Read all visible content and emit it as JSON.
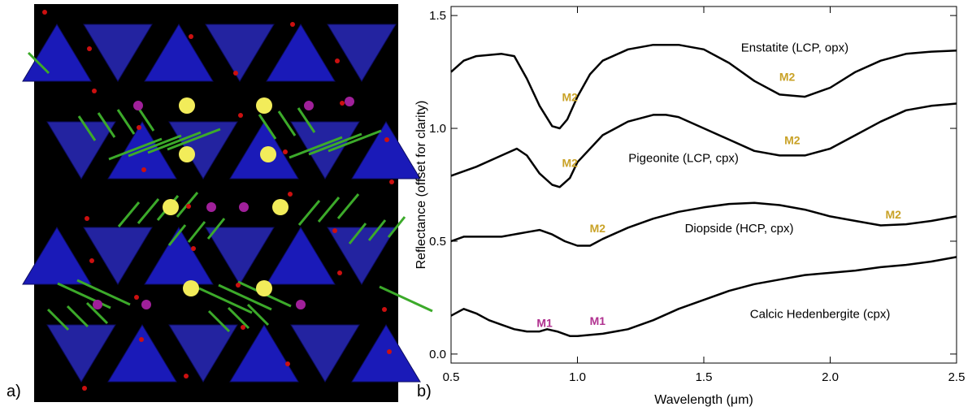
{
  "panel_labels": [
    "a)",
    "b)"
  ],
  "chart_data": {
    "type": "line",
    "xlabel": "Wavelength (μm)",
    "ylabel": "Reflectance (offset for clarity)",
    "xlim": [
      0.5,
      2.5
    ],
    "xticks": [
      0.5,
      {
        "value": 1,
        "label": "1.0"
      },
      1.5,
      {
        "value": 2,
        "label": "2.0"
      },
      2.5
    ],
    "ylim": [
      -0.04,
      1.54
    ],
    "yticks": [
      {
        "value": 0,
        "label": "0.0"
      },
      0.5,
      {
        "value": 1,
        "label": "1.0"
      },
      1.5
    ],
    "grid": false,
    "series": [
      {
        "name": "Enstatite (LCP, opx)",
        "color": "#000000",
        "x": [
          0.5,
          0.55,
          0.6,
          0.7,
          0.75,
          0.8,
          0.85,
          0.9,
          0.93,
          0.96,
          1.0,
          1.05,
          1.1,
          1.2,
          1.3,
          1.4,
          1.5,
          1.6,
          1.7,
          1.8,
          1.9,
          2.0,
          2.1,
          2.2,
          2.3,
          2.4,
          2.5
        ],
        "values": [
          1.25,
          1.3,
          1.32,
          1.33,
          1.32,
          1.22,
          1.1,
          1.01,
          1.0,
          1.04,
          1.14,
          1.24,
          1.3,
          1.35,
          1.37,
          1.37,
          1.35,
          1.29,
          1.21,
          1.15,
          1.14,
          1.18,
          1.25,
          1.3,
          1.33,
          1.34,
          1.345
        ]
      },
      {
        "name": "Pigeonite (LCP, cpx)",
        "color": "#000000",
        "x": [
          0.5,
          0.6,
          0.7,
          0.76,
          0.8,
          0.85,
          0.9,
          0.93,
          0.97,
          1.0,
          1.1,
          1.2,
          1.3,
          1.35,
          1.4,
          1.5,
          1.6,
          1.7,
          1.8,
          1.9,
          2.0,
          2.1,
          2.2,
          2.3,
          2.4,
          2.5
        ],
        "values": [
          0.79,
          0.83,
          0.88,
          0.91,
          0.88,
          0.8,
          0.75,
          0.74,
          0.78,
          0.85,
          0.97,
          1.03,
          1.06,
          1.06,
          1.05,
          1.0,
          0.95,
          0.9,
          0.88,
          0.88,
          0.91,
          0.97,
          1.03,
          1.08,
          1.1,
          1.11
        ]
      },
      {
        "name": "Diopside (HCP, cpx)",
        "color": "#000000",
        "x": [
          0.5,
          0.55,
          0.7,
          0.8,
          0.85,
          0.9,
          0.95,
          1.0,
          1.05,
          1.1,
          1.2,
          1.3,
          1.4,
          1.5,
          1.6,
          1.7,
          1.8,
          1.9,
          2.0,
          2.1,
          2.2,
          2.3,
          2.4,
          2.5
        ],
        "values": [
          0.5,
          0.52,
          0.52,
          0.54,
          0.55,
          0.53,
          0.5,
          0.48,
          0.48,
          0.51,
          0.56,
          0.6,
          0.63,
          0.65,
          0.665,
          0.67,
          0.66,
          0.64,
          0.61,
          0.59,
          0.57,
          0.575,
          0.59,
          0.61
        ]
      },
      {
        "name": "Calcic Hedenbergite  (cpx)",
        "color": "#000000",
        "x": [
          0.5,
          0.55,
          0.6,
          0.65,
          0.7,
          0.75,
          0.8,
          0.85,
          0.88,
          0.92,
          0.97,
          1.0,
          1.1,
          1.2,
          1.3,
          1.4,
          1.5,
          1.6,
          1.7,
          1.8,
          1.9,
          2.0,
          2.1,
          2.2,
          2.3,
          2.4,
          2.5
        ],
        "values": [
          0.17,
          0.2,
          0.18,
          0.15,
          0.13,
          0.11,
          0.1,
          0.1,
          0.11,
          0.1,
          0.08,
          0.08,
          0.09,
          0.11,
          0.15,
          0.2,
          0.24,
          0.28,
          0.31,
          0.33,
          0.35,
          0.36,
          0.37,
          0.385,
          0.395,
          0.41,
          0.43
        ]
      }
    ],
    "annotations": [
      {
        "text": "M2",
        "color": "#c9a227"
      },
      {
        "text": "M2",
        "color": "#c9a227"
      },
      {
        "text": "M2",
        "color": "#c9a227"
      },
      {
        "text": "M2",
        "color": "#c9a227"
      },
      {
        "text": "M2",
        "color": "#c9a227"
      },
      {
        "text": "M2",
        "color": "#c9a227"
      },
      {
        "text": "M1",
        "color": "#b0308f"
      },
      {
        "text": "M1",
        "color": "#b0308f"
      }
    ]
  }
}
